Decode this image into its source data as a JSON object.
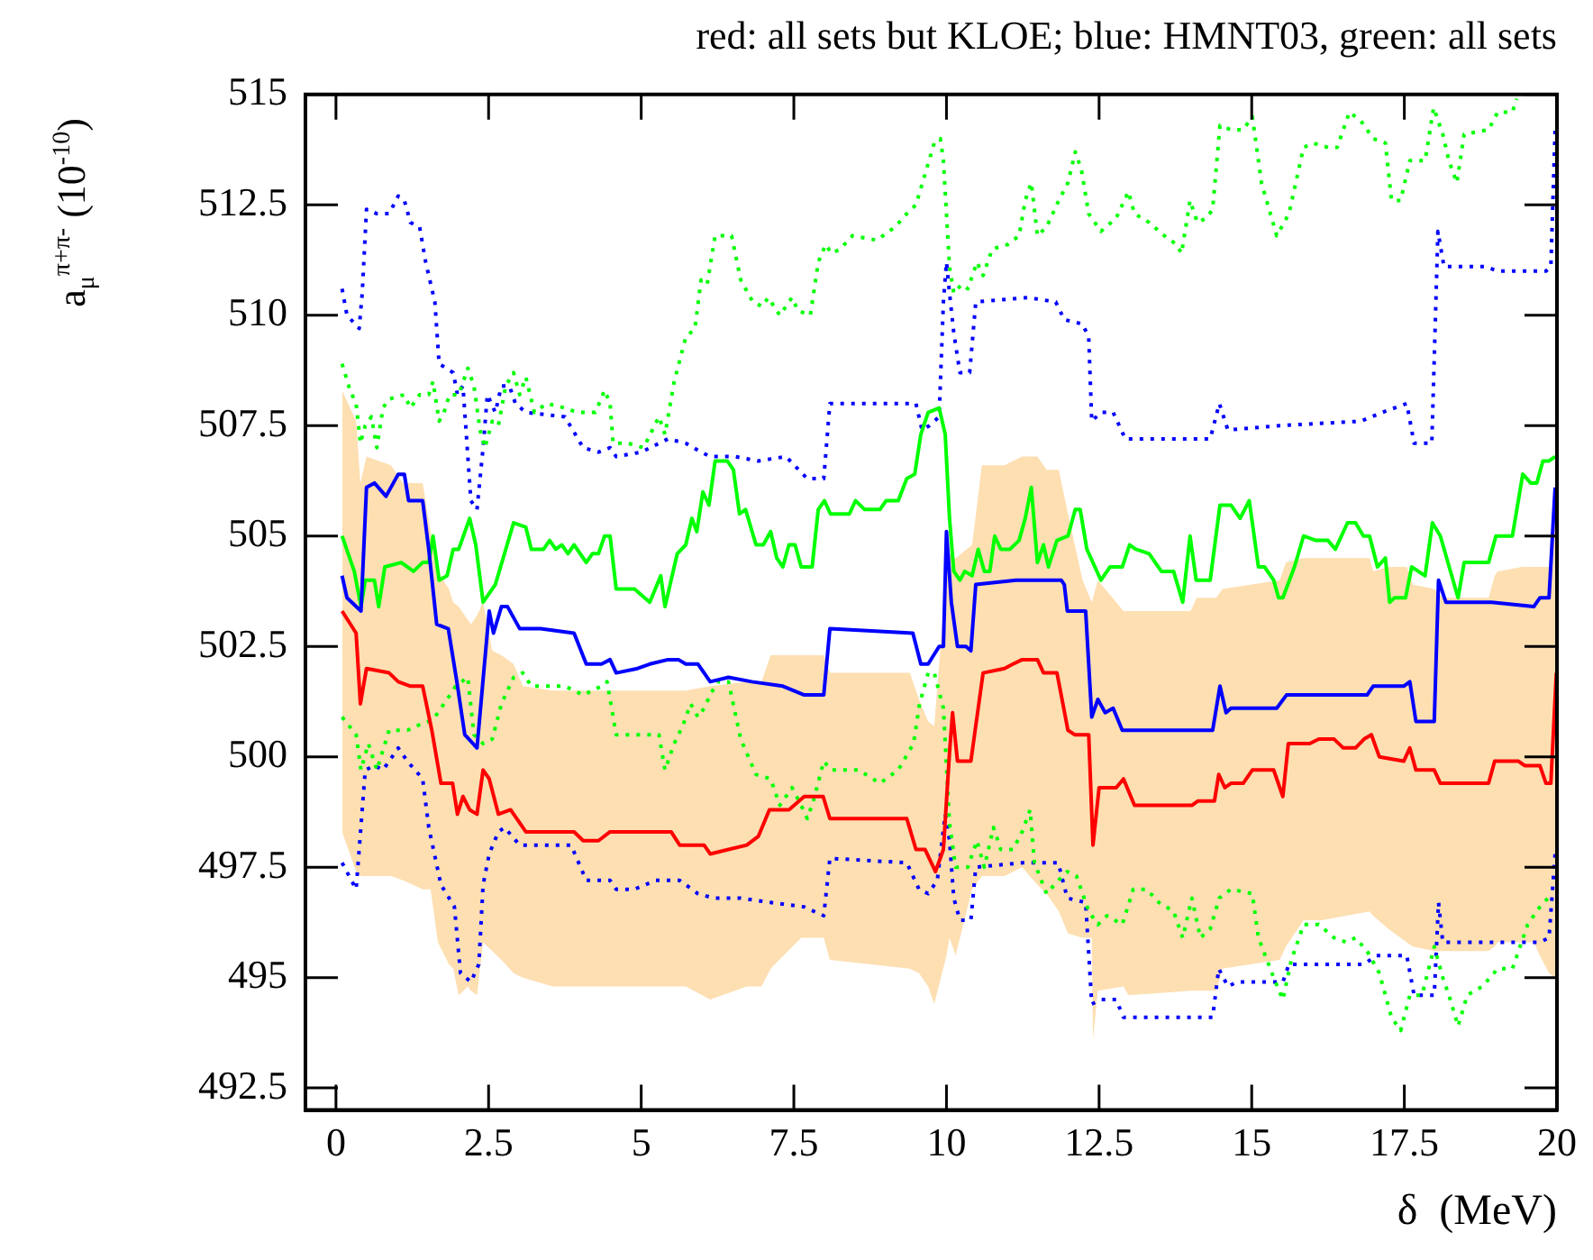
{
  "chart_data": {
    "type": "line",
    "title": "red: all sets but KLOE; blue: HMNT03, green: all sets",
    "xlabel": "δ  (MeV)",
    "ylabel": "a$_{μ}$$^{π+π-}$  (10$^{-10}$)",
    "xlim": [
      -0.5,
      20
    ],
    "ylim": [
      492,
      515
    ],
    "xticks": [
      0,
      2.5,
      5,
      7.5,
      10,
      12.5,
      15,
      17.5,
      20
    ],
    "yticks": [
      492.5,
      495,
      497.5,
      500,
      502.5,
      505,
      507.5,
      510,
      512.5,
      515
    ],
    "marker": "none",
    "series": [
      {
        "color": "#fddfb2",
        "values": [
          null,
          null,
          null,
          null,
          null,
          null,
          null,
          null,
          null,
          null,
          null,
          null,
          null,
          null,
          null,
          null,
          null,
          null,
          null,
          null,
          null,
          null,
          null,
          null,
          null,
          null,
          null,
          null,
          null,
          null,
          null,
          null,
          null,
          null,
          null,
          null,
          null,
          null,
          null,
          null,
          null,
          null,
          null,
          null,
          null,
          null,
          null,
          null,
          null,
          null,
          null,
          null,
          null,
          null,
          null,
          null,
          null,
          null,
          null,
          null,
          null,
          null,
          null,
          null,
          null,
          null,
          null,
          null,
          null,
          null,
          null,
          null,
          null,
          null
        ],
        "x": [
          0.1,
          0.33,
          0.4,
          0.5,
          0.9,
          1.1,
          1.42,
          1.55,
          1.67,
          1.85,
          1.92,
          2.01,
          2.16,
          2.21,
          2.31,
          2.41,
          2.56,
          2.71,
          2.91,
          3.06,
          3.55,
          4.54,
          5.73,
          6.13,
          6.73,
          6.97,
          7.12,
          7.62,
          7.99,
          8.09,
          9.4,
          9.55,
          9.7,
          9.8,
          10.0,
          10.05,
          10.15,
          10.42,
          10.58,
          10.95,
          11.24,
          11.49,
          11.64,
          11.84,
          11.99,
          12.23,
          12.38,
          12.4,
          12.48,
          12.9,
          12.98,
          14.0,
          14.1,
          14.42,
          14.52,
          15.46,
          15.56,
          15.85,
          16.15,
          16.93,
          16.99,
          17.24,
          17.54,
          17.64,
          17.99,
          18.13,
          18.88,
          18.98,
          19.03,
          19.43,
          19.62,
          19.72,
          19.87,
          19.97
        ],
        "upper": [
          508.3,
          507.6,
          506.2,
          506.8,
          506.6,
          506.2,
          506.2,
          505.1,
          504.2,
          503.8,
          503.5,
          503.4,
          503.1,
          503.0,
          503.2,
          503.5,
          502.4,
          502.3,
          502.1,
          501.6,
          501.5,
          501.5,
          501.5,
          501.6,
          501.7,
          501.7,
          502.3,
          502.3,
          502.3,
          501.9,
          501.9,
          501.3,
          500.8,
          500.7,
          504.2,
          504.6,
          504.5,
          504.8,
          506.6,
          506.6,
          506.8,
          506.8,
          506.5,
          506.5,
          505.5,
          504.0,
          503.5,
          503.6,
          504.0,
          503.3,
          503.3,
          503.3,
          503.6,
          503.6,
          503.8,
          504.0,
          504.4,
          504.5,
          504.5,
          504.5,
          504.2,
          504.3,
          504.3,
          503.9,
          503.8,
          503.6,
          503.6,
          504.1,
          504.2,
          504.3,
          504.3,
          504.3,
          504.3,
          505.5
        ],
        "lower": [
          498.3,
          497.4,
          497.3,
          497.3,
          497.3,
          497.2,
          497.0,
          497.0,
          495.8,
          495.3,
          495.2,
          494.6,
          494.8,
          494.7,
          494.6,
          495.8,
          495.6,
          495.4,
          495.1,
          495.0,
          494.8,
          494.8,
          494.8,
          494.5,
          494.8,
          494.8,
          495.2,
          495.9,
          495.9,
          495.4,
          495.2,
          495.1,
          494.8,
          494.4,
          495.5,
          495.9,
          495.5,
          497.0,
          497.3,
          497.3,
          497.5,
          497.1,
          496.9,
          496.5,
          496.0,
          495.9,
          495.9,
          493.6,
          494.7,
          494.8,
          494.6,
          494.7,
          494.7,
          494.7,
          495.2,
          495.4,
          495.7,
          496.3,
          496.3,
          496.5,
          496.4,
          496.1,
          495.8,
          495.7,
          495.6,
          495.6,
          495.6,
          495.7,
          495.8,
          495.8,
          495.8,
          495.5,
          495.1,
          495.0
        ]
      },
      {
        "color": "#0000ff",
        "line_style": "dotted",
        "x": [
          0.1,
          0.18,
          0.38,
          0.43,
          0.5,
          0.67,
          0.87,
          1.02,
          1.12,
          1.22,
          1.37,
          1.47,
          1.62,
          1.69,
          1.92,
          1.99,
          2.08,
          2.21,
          2.31,
          2.41,
          2.48,
          2.61,
          2.71,
          2.84,
          2.94,
          3.11,
          3.75,
          4.05,
          4.3,
          4.49,
          4.59,
          5.0,
          5.44,
          5.73,
          5.98,
          6.13,
          6.53,
          6.92,
          7.37,
          7.72,
          7.99,
          8.09,
          9.5,
          9.6,
          9.72,
          9.88,
          9.95,
          10.0,
          10.05,
          10.12,
          10.22,
          10.38,
          10.48,
          11.34,
          11.79,
          11.93,
          12.23,
          12.33,
          12.38,
          12.53,
          12.73,
          12.93,
          14.32,
          14.47,
          14.61,
          15.46,
          16.79,
          17.14,
          17.54,
          17.66,
          17.95,
          18.05,
          18.15,
          18.83,
          19.03,
          19.82,
          19.9,
          19.97
        ],
        "values": [
          510.6,
          510.0,
          509.7,
          510.5,
          512.4,
          512.3,
          512.3,
          512.7,
          512.6,
          512.1,
          512.0,
          511.2,
          510.3,
          508.9,
          508.7,
          508.2,
          508.4,
          505.8,
          505.6,
          507.0,
          508.2,
          507.8,
          508.4,
          508.4,
          508.0,
          507.8,
          507.7,
          507.0,
          506.9,
          507.0,
          506.8,
          506.9,
          507.2,
          507.1,
          506.9,
          506.8,
          506.8,
          506.7,
          506.8,
          506.3,
          506.3,
          508.0,
          508.0,
          507.4,
          507.5,
          507.7,
          510.3,
          511.2,
          510.5,
          509.6,
          508.7,
          508.7,
          510.3,
          510.4,
          510.3,
          509.9,
          509.8,
          509.5,
          507.6,
          507.8,
          507.8,
          507.2,
          507.2,
          508.0,
          507.4,
          507.5,
          507.6,
          507.8,
          508.0,
          507.1,
          507.1,
          511.9,
          511.1,
          511.1,
          511.0,
          511.0,
          511.1,
          514.2
        ]
      },
      {
        "color": "#0000ff",
        "line_style": "dotted",
        "x": [
          0.1,
          0.33,
          0.48,
          0.63,
          0.77,
          1.02,
          1.17,
          1.42,
          1.52,
          1.72,
          1.94,
          2.04,
          2.21,
          2.34,
          2.41,
          2.51,
          2.66,
          2.76,
          3.01,
          3.85,
          4.1,
          4.49,
          4.59,
          4.89,
          5.24,
          5.63,
          5.93,
          6.18,
          6.63,
          7.12,
          7.67,
          7.99,
          8.09,
          9.35,
          9.55,
          9.7,
          9.85,
          9.98,
          10.05,
          10.12,
          10.22,
          10.4,
          10.48,
          11.24,
          11.83,
          11.98,
          12.28,
          12.38,
          12.53,
          12.78,
          12.9,
          14.36,
          14.46,
          14.61,
          14.76,
          15.51,
          15.61,
          16.84,
          17.04,
          17.54,
          17.66,
          17.99,
          18.06,
          18.13,
          19.72,
          19.87,
          19.97
        ],
        "values": [
          497.6,
          497.0,
          499.7,
          499.8,
          499.7,
          500.2,
          499.9,
          499.5,
          498.4,
          497.1,
          496.6,
          495.1,
          494.9,
          495.3,
          497.1,
          497.8,
          498.3,
          498.4,
          498.0,
          498.0,
          497.2,
          497.2,
          497.0,
          497.0,
          497.2,
          497.2,
          496.9,
          496.8,
          496.8,
          496.7,
          496.6,
          496.4,
          497.7,
          497.6,
          497.0,
          496.9,
          497.2,
          498.7,
          498.1,
          496.8,
          496.3,
          496.3,
          497.5,
          497.6,
          497.6,
          496.8,
          496.7,
          494.4,
          494.5,
          494.5,
          494.1,
          494.1,
          495.2,
          494.8,
          494.9,
          494.9,
          495.3,
          495.3,
          495.5,
          495.5,
          494.6,
          494.6,
          496.7,
          495.8,
          495.8,
          495.9,
          497.8
        ]
      },
      {
        "color": "#00ff00",
        "line_style": "dotted",
        "x": [
          0.1,
          0.23,
          0.33,
          0.4,
          0.48,
          0.58,
          0.67,
          0.77,
          0.87,
          1.12,
          1.22,
          1.37,
          1.52,
          1.59,
          1.69,
          1.77,
          1.86,
          2.01,
          2.16,
          2.26,
          2.36,
          2.44,
          2.56,
          2.66,
          2.78,
          2.91,
          3.01,
          3.11,
          3.25,
          3.45,
          3.75,
          3.95,
          4.25,
          4.4,
          4.49,
          4.54,
          4.79,
          5.04,
          5.29,
          5.39,
          5.54,
          5.73,
          5.88,
          5.98,
          6.08,
          6.21,
          6.48,
          6.63,
          6.83,
          6.98,
          7.08,
          7.27,
          7.47,
          7.57,
          7.77,
          7.9,
          8.02,
          8.12,
          8.26,
          8.46,
          8.86,
          9.16,
          9.35,
          9.5,
          9.65,
          9.8,
          9.9,
          9.95,
          10.05,
          10.12,
          10.25,
          10.35,
          10.5,
          10.6,
          10.75,
          11.0,
          11.19,
          11.29,
          11.39,
          11.49,
          11.64,
          11.84,
          11.99,
          12.11,
          12.21,
          12.33,
          12.53,
          12.78,
          12.98,
          13.08,
          13.32,
          13.57,
          13.77,
          13.85,
          13.99,
          14.11,
          14.26,
          14.36,
          14.48,
          14.66,
          14.86,
          15.01,
          15.16,
          15.41,
          15.61,
          15.85,
          16.0,
          16.25,
          16.4,
          16.6,
          16.79,
          16.99,
          17.19,
          17.29,
          17.44,
          17.59,
          17.84,
          17.98,
          18.13,
          18.23,
          18.36,
          18.48,
          18.88,
          19.03,
          19.27,
          19.34
        ],
        "values": [
          508.9,
          508.3,
          508.0,
          507.1,
          507.5,
          507.7,
          507.0,
          507.9,
          508.1,
          508.2,
          507.9,
          508.2,
          508.2,
          508.5,
          507.6,
          507.8,
          508.2,
          508.2,
          508.8,
          508.4,
          507.4,
          507.0,
          507.6,
          507.5,
          508.4,
          508.7,
          508.2,
          508.6,
          507.8,
          508.0,
          507.9,
          507.8,
          507.8,
          508.3,
          508.0,
          507.1,
          507.1,
          507.0,
          507.7,
          507.3,
          508.5,
          509.5,
          509.7,
          510.8,
          510.7,
          511.8,
          511.8,
          510.8,
          510.3,
          510.2,
          510.4,
          510.0,
          510.4,
          510.1,
          510.0,
          511.2,
          511.6,
          511.4,
          511.5,
          511.8,
          511.7,
          512.0,
          512.3,
          512.5,
          513.2,
          513.9,
          514.0,
          513.5,
          511.1,
          510.5,
          510.7,
          510.6,
          511.2,
          510.9,
          511.5,
          511.6,
          511.8,
          512.6,
          513.0,
          511.8,
          512.0,
          512.6,
          513.0,
          513.7,
          513.3,
          512.3,
          511.9,
          512.2,
          512.8,
          512.3,
          512.1,
          511.8,
          511.6,
          511.4,
          512.6,
          512.1,
          512.2,
          512.4,
          514.3,
          514.2,
          514.2,
          514.5,
          513.0,
          511.8,
          512.3,
          513.8,
          513.9,
          513.8,
          513.8,
          514.6,
          514.4,
          514.0,
          513.9,
          512.6,
          512.6,
          513.5,
          513.5,
          514.7,
          514.1,
          513.5,
          513.0,
          514.1,
          514.2,
          514.6,
          514.6,
          514.9
        ]
      },
      {
        "color": "#00ff00",
        "line_style": "dotted",
        "x": [
          0.1,
          0.33,
          0.41,
          0.53,
          0.67,
          0.87,
          1.02,
          1.17,
          1.32,
          1.52,
          1.62,
          1.82,
          1.96,
          2.16,
          2.26,
          2.41,
          2.56,
          2.71,
          2.91,
          3.06,
          3.2,
          3.45,
          3.75,
          4.05,
          4.35,
          4.44,
          4.54,
          4.59,
          4.94,
          5.29,
          5.39,
          5.54,
          5.68,
          5.81,
          5.93,
          6.03,
          6.13,
          6.25,
          6.43,
          6.63,
          6.88,
          7.12,
          7.27,
          7.47,
          7.62,
          7.72,
          7.82,
          7.99,
          8.11,
          8.56,
          8.91,
          9.21,
          9.46,
          9.56,
          9.7,
          9.8,
          9.95,
          10.05,
          10.15,
          10.35,
          10.5,
          10.62,
          10.77,
          10.89,
          11.09,
          11.24,
          11.37,
          11.44,
          11.64,
          11.83,
          11.98,
          12.13,
          12.33,
          12.48,
          12.63,
          12.88,
          13.06,
          13.28,
          13.48,
          13.72,
          13.87,
          14.02,
          14.16,
          14.32,
          14.47,
          14.66,
          15.01,
          15.11,
          15.36,
          15.51,
          15.65,
          15.85,
          16.1,
          16.35,
          16.55,
          16.7,
          16.89,
          17.09,
          17.29,
          17.44,
          17.59,
          17.79,
          17.99,
          18.13,
          18.23,
          18.38,
          18.53,
          18.78,
          19.03,
          19.27,
          19.42,
          19.52,
          19.72,
          19.92
        ],
        "values": [
          500.9,
          500.5,
          499.7,
          500.3,
          499.7,
          500.6,
          500.6,
          500.6,
          500.7,
          500.8,
          500.9,
          501.3,
          501.6,
          501.8,
          500.5,
          500.3,
          500.4,
          501.2,
          501.8,
          501.9,
          501.6,
          501.6,
          501.6,
          501.4,
          501.6,
          501.7,
          500.9,
          500.5,
          500.5,
          500.5,
          499.7,
          500.3,
          500.7,
          501.2,
          500.9,
          501.1,
          501.4,
          501.7,
          501.7,
          500.4,
          499.6,
          499.5,
          498.9,
          499.3,
          498.9,
          498.6,
          499.0,
          499.9,
          499.7,
          499.7,
          499.4,
          499.7,
          500.3,
          501.2,
          501.9,
          501.9,
          501.1,
          498.5,
          497.5,
          497.5,
          498.1,
          497.5,
          498.4,
          497.9,
          497.9,
          498.3,
          498.8,
          497.6,
          496.9,
          497.2,
          497.4,
          497.3,
          496.5,
          496.2,
          496.4,
          496.2,
          497.0,
          497.0,
          496.7,
          496.5,
          495.9,
          496.8,
          495.9,
          496.1,
          496.8,
          497.0,
          496.9,
          495.9,
          495.0,
          494.5,
          495.4,
          496.2,
          496.2,
          495.9,
          495.8,
          495.9,
          495.6,
          495.1,
          494.1,
          493.8,
          494.6,
          494.6,
          495.7,
          495.0,
          494.6,
          493.9,
          494.6,
          494.8,
          495.2,
          495.2,
          495.8,
          496.2,
          496.6,
          496.9
        ]
      },
      {
        "color": "#00ff00",
        "line_style": "solid",
        "x": [
          0.1,
          0.3,
          0.41,
          0.48,
          0.63,
          0.7,
          0.8,
          1.07,
          1.27,
          1.42,
          1.52,
          1.59,
          1.69,
          1.82,
          1.92,
          2.01,
          2.19,
          2.29,
          2.41,
          2.61,
          2.91,
          3.11,
          3.2,
          3.4,
          3.5,
          3.6,
          3.7,
          3.8,
          3.9,
          4.1,
          4.2,
          4.3,
          4.4,
          4.49,
          4.59,
          4.89,
          5.14,
          5.32,
          5.39,
          5.59,
          5.73,
          5.83,
          5.91,
          6.01,
          6.11,
          6.21,
          6.41,
          6.51,
          6.61,
          6.71,
          6.88,
          7.0,
          7.12,
          7.22,
          7.32,
          7.42,
          7.52,
          7.62,
          7.8,
          7.9,
          8.0,
          8.1,
          8.41,
          8.51,
          8.66,
          8.91,
          9.01,
          9.21,
          9.35,
          9.48,
          9.58,
          9.7,
          9.88,
          9.98,
          10.05,
          10.12,
          10.22,
          10.3,
          10.42,
          10.52,
          10.62,
          10.71,
          10.79,
          10.89,
          11.04,
          11.19,
          11.29,
          11.39,
          11.49,
          11.59,
          11.67,
          11.81,
          11.99,
          12.11,
          12.19,
          12.3,
          12.53,
          12.68,
          12.88,
          13.0,
          13.1,
          13.32,
          13.52,
          13.72,
          13.87,
          13.99,
          14.09,
          14.32,
          14.48,
          14.66,
          14.81,
          14.96,
          15.11,
          15.21,
          15.36,
          15.44,
          15.51,
          15.7,
          15.85,
          16.05,
          16.25,
          16.37,
          16.57,
          16.7,
          16.83,
          16.93,
          17.06,
          17.19,
          17.26,
          17.34,
          17.52,
          17.62,
          17.84,
          17.96,
          18.09,
          18.38,
          18.48,
          18.88,
          19.0,
          19.27,
          19.44,
          19.57,
          19.67,
          19.77,
          19.87,
          19.97
        ],
        "values": [
          505.0,
          504.2,
          503.4,
          504.0,
          504.0,
          503.4,
          504.3,
          504.4,
          504.2,
          504.4,
          504.4,
          505.0,
          504.0,
          504.1,
          504.7,
          504.7,
          505.4,
          504.8,
          503.5,
          503.9,
          505.3,
          505.2,
          504.7,
          504.7,
          504.9,
          504.7,
          504.8,
          504.6,
          504.8,
          504.4,
          504.6,
          504.6,
          505.0,
          505.0,
          503.8,
          503.8,
          503.5,
          504.1,
          503.4,
          504.6,
          504.8,
          505.4,
          505.1,
          506.0,
          505.7,
          506.7,
          506.7,
          506.5,
          505.5,
          505.6,
          504.8,
          504.8,
          505.1,
          504.5,
          504.3,
          504.8,
          504.8,
          504.3,
          504.3,
          505.6,
          505.8,
          505.5,
          505.5,
          505.8,
          505.6,
          505.6,
          505.8,
          505.8,
          506.3,
          506.4,
          507.3,
          507.8,
          507.9,
          507.3,
          505.4,
          504.2,
          504.0,
          504.2,
          504.1,
          504.7,
          504.2,
          504.2,
          505.0,
          504.7,
          504.7,
          504.9,
          505.4,
          506.1,
          504.4,
          504.8,
          504.3,
          504.9,
          505.0,
          505.6,
          505.6,
          504.7,
          504.0,
          504.3,
          504.3,
          504.8,
          504.7,
          504.6,
          504.2,
          504.2,
          503.5,
          505.0,
          504.0,
          504.0,
          505.7,
          505.7,
          505.4,
          505.8,
          504.3,
          504.3,
          504.0,
          503.6,
          503.6,
          504.3,
          505.0,
          504.9,
          504.9,
          504.7,
          505.3,
          505.3,
          505.0,
          505.0,
          504.3,
          504.5,
          503.5,
          503.6,
          503.6,
          504.3,
          504.1,
          505.3,
          505.0,
          503.6,
          504.4,
          504.4,
          505.0,
          505.0,
          506.4,
          506.2,
          506.2,
          506.7,
          506.7,
          506.8
        ]
      },
      {
        "color": "#0000ff",
        "line_style": "solid",
        "x": [
          0.1,
          0.18,
          0.41,
          0.5,
          0.63,
          0.82,
          1.02,
          1.12,
          1.19,
          1.42,
          1.52,
          1.65,
          1.84,
          1.98,
          2.11,
          2.31,
          2.51,
          2.58,
          2.71,
          2.81,
          3.01,
          3.35,
          3.9,
          4.1,
          4.35,
          4.49,
          4.59,
          4.94,
          5.14,
          5.44,
          5.61,
          5.73,
          5.93,
          6.13,
          6.43,
          6.81,
          7.32,
          7.67,
          7.99,
          8.09,
          9.45,
          9.58,
          9.7,
          9.88,
          9.95,
          10.0,
          10.08,
          10.18,
          10.32,
          10.4,
          10.48,
          11.14,
          11.88,
          11.93,
          11.98,
          12.28,
          12.38,
          12.48,
          12.6,
          12.73,
          12.88,
          14.36,
          14.48,
          14.58,
          14.66,
          15.41,
          15.57,
          16.89,
          16.99,
          17.49,
          17.59,
          17.69,
          17.99,
          18.06,
          18.18,
          18.93,
          19.62,
          19.72,
          19.87,
          19.97
        ],
        "values": [
          504.1,
          503.6,
          503.3,
          506.1,
          506.2,
          505.9,
          506.4,
          506.4,
          505.8,
          505.8,
          504.7,
          503.0,
          502.9,
          501.7,
          500.5,
          500.2,
          503.3,
          502.8,
          503.4,
          503.4,
          502.9,
          502.9,
          502.8,
          502.1,
          502.1,
          502.2,
          501.9,
          502.0,
          502.1,
          502.2,
          502.2,
          502.1,
          502.1,
          501.7,
          501.8,
          501.7,
          501.6,
          501.4,
          501.4,
          502.9,
          502.8,
          502.1,
          502.1,
          502.5,
          502.5,
          505.1,
          503.5,
          502.5,
          502.5,
          502.4,
          503.9,
          504.0,
          504.0,
          503.9,
          503.3,
          503.3,
          500.9,
          501.3,
          501.0,
          501.1,
          500.6,
          500.6,
          501.6,
          501.0,
          501.1,
          501.1,
          501.4,
          501.4,
          501.6,
          501.6,
          501.7,
          500.8,
          500.8,
          504.0,
          503.5,
          503.5,
          503.4,
          503.6,
          503.6,
          506.1
        ]
      },
      {
        "color": "#ff0000",
        "line_style": "solid",
        "x": [
          0.1,
          0.33,
          0.4,
          0.5,
          0.87,
          1.02,
          1.22,
          1.42,
          1.57,
          1.72,
          1.91,
          1.99,
          2.08,
          2.19,
          2.31,
          2.41,
          2.51,
          2.66,
          2.86,
          3.11,
          3.9,
          4.05,
          4.3,
          4.49,
          5.49,
          5.63,
          6.03,
          6.13,
          6.43,
          6.73,
          6.92,
          7.1,
          7.42,
          7.67,
          7.98,
          8.09,
          9.35,
          9.5,
          9.65,
          9.82,
          9.95,
          10.05,
          10.1,
          10.18,
          10.4,
          10.6,
          10.95,
          11.09,
          11.24,
          11.49,
          11.59,
          11.81,
          11.99,
          12.1,
          12.33,
          12.4,
          12.5,
          12.78,
          12.9,
          13.08,
          14.02,
          14.12,
          14.39,
          14.46,
          14.56,
          14.66,
          14.86,
          15.01,
          15.36,
          15.51,
          15.6,
          15.95,
          16.1,
          16.35,
          16.5,
          16.7,
          16.84,
          16.96,
          17.09,
          17.49,
          17.59,
          17.69,
          17.99,
          18.09,
          18.88,
          18.98,
          19.37,
          19.47,
          19.72,
          19.82,
          19.9,
          19.99
        ],
        "values": [
          503.3,
          502.8,
          501.2,
          502.0,
          501.9,
          501.7,
          501.6,
          501.6,
          500.6,
          499.4,
          499.4,
          498.7,
          499.1,
          498.8,
          498.7,
          499.7,
          499.5,
          498.7,
          498.8,
          498.3,
          498.3,
          498.1,
          498.1,
          498.3,
          498.3,
          498.0,
          498.0,
          497.8,
          497.9,
          498.0,
          498.2,
          498.8,
          498.8,
          499.1,
          499.1,
          498.6,
          498.6,
          497.9,
          497.9,
          497.4,
          497.9,
          500.1,
          501.0,
          499.9,
          499.9,
          501.9,
          502.0,
          502.1,
          502.2,
          502.2,
          501.9,
          501.9,
          500.6,
          500.5,
          500.5,
          498.0,
          499.3,
          499.3,
          499.5,
          498.9,
          498.9,
          499.0,
          499.0,
          499.6,
          499.3,
          499.4,
          499.4,
          499.7,
          499.7,
          499.1,
          500.3,
          500.3,
          500.4,
          500.4,
          500.2,
          500.2,
          500.4,
          500.5,
          500.0,
          499.9,
          500.2,
          499.7,
          499.7,
          499.4,
          499.4,
          499.9,
          499.9,
          499.8,
          499.8,
          499.4,
          499.4,
          501.9
        ]
      }
    ]
  }
}
